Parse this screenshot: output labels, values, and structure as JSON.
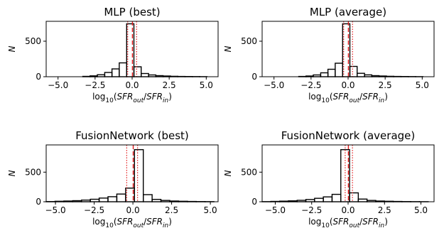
{
  "chart_data": [
    {
      "type": "histogram",
      "title": "MLP (best)",
      "ylabel": "N",
      "xlabel": {
        "prefix": "log",
        "sub": "10",
        "open": "(",
        "num": "SFR",
        "num_sub": "out",
        "slash": "/",
        "den": "SFR",
        "den_sub": "in",
        "close": ")"
      },
      "xlim": [
        -5.8,
        5.8
      ],
      "ylim": [
        0,
        780
      ],
      "xticks": [
        -5.0,
        -2.5,
        0.0,
        2.5,
        5.0
      ],
      "xtick_labels": [
        "−5.0",
        "−2.5",
        "0.0",
        "2.5",
        "5.0"
      ],
      "yticks": [
        0,
        500
      ],
      "ytick_labels": [
        "0",
        "500"
      ],
      "bin_edges": [
        -5.8,
        -5.31,
        -4.81,
        -4.32,
        -3.83,
        -3.33,
        -2.84,
        -2.35,
        -1.85,
        -1.36,
        -0.87,
        -0.37,
        0.12,
        0.61,
        1.11,
        1.6,
        2.09,
        2.59,
        3.08,
        3.57,
        4.07,
        4.56,
        5.05,
        5.55,
        5.8
      ],
      "counts": [
        0,
        0,
        0,
        0,
        0,
        5,
        12,
        28,
        60,
        110,
        195,
        745,
        140,
        45,
        25,
        15,
        10,
        6,
        4,
        3,
        2,
        1,
        0,
        0
      ],
      "vlines": [
        {
          "x": 0.02,
          "style": "dashed"
        },
        {
          "x": -0.3,
          "style": "dotted"
        },
        {
          "x": 0.3,
          "style": "dotted"
        }
      ]
    },
    {
      "type": "histogram",
      "title": "MLP (average)",
      "ylabel": "N",
      "xlabel": {
        "prefix": "log",
        "sub": "10",
        "open": "(",
        "num": "SFR",
        "num_sub": "out",
        "slash": "/",
        "den": "SFR",
        "den_sub": "in",
        "close": ")"
      },
      "xlim": [
        -5.8,
        5.8
      ],
      "ylim": [
        0,
        780
      ],
      "xticks": [
        -5.0,
        -2.5,
        0.0,
        2.5,
        5.0
      ],
      "xtick_labels": [
        "−5.0",
        "−2.5",
        "0.0",
        "2.5",
        "5.0"
      ],
      "yticks": [
        0,
        500
      ],
      "ytick_labels": [
        "0",
        "500"
      ],
      "bin_edges": [
        -5.8,
        -5.31,
        -4.81,
        -4.32,
        -3.83,
        -3.33,
        -2.84,
        -2.35,
        -1.85,
        -1.36,
        -0.87,
        -0.37,
        0.12,
        0.61,
        1.11,
        1.6,
        2.09,
        2.59,
        3.08,
        3.57,
        4.07,
        4.56,
        5.05,
        5.55,
        5.8
      ],
      "counts": [
        0,
        0,
        0,
        0,
        0,
        4,
        10,
        25,
        55,
        105,
        190,
        745,
        145,
        48,
        26,
        15,
        10,
        6,
        4,
        3,
        2,
        1,
        0,
        0
      ],
      "vlines": [
        {
          "x": 0.02,
          "style": "dashed"
        },
        {
          "x": -0.3,
          "style": "dotted"
        },
        {
          "x": 0.3,
          "style": "dotted"
        }
      ]
    },
    {
      "type": "histogram",
      "title": "FusionNetwork (best)",
      "ylabel": "N",
      "xlabel": {
        "prefix": "log",
        "sub": "10",
        "open": "(",
        "num": "SFR",
        "num_sub": "out",
        "slash": "/",
        "den": "SFR",
        "den_sub": "in",
        "close": ")"
      },
      "xlim": [
        -5.6,
        5.5
      ],
      "ylim": [
        0,
        960
      ],
      "xticks": [
        -5.0,
        -2.5,
        0.0,
        2.5,
        5.0
      ],
      "xtick_labels": [
        "−5.0",
        "−2.5",
        "0.0",
        "2.5",
        "5.0"
      ],
      "yticks": [
        0,
        500
      ],
      "ytick_labels": [
        "0",
        "500"
      ],
      "bin_edges": [
        -5.6,
        -5.03,
        -4.46,
        -3.89,
        -3.32,
        -2.75,
        -2.18,
        -1.61,
        -1.04,
        -0.47,
        0.1,
        0.67,
        1.24,
        1.81,
        2.38,
        2.95,
        3.52,
        4.09,
        4.66,
        5.23,
        5.5
      ],
      "counts": [
        3,
        8,
        12,
        18,
        28,
        42,
        62,
        85,
        130,
        230,
        880,
        120,
        40,
        22,
        12,
        8,
        5,
        3,
        2,
        0
      ],
      "vlines": [
        {
          "x": 0.02,
          "style": "dashed"
        },
        {
          "x": -0.4,
          "style": "dotted"
        },
        {
          "x": 0.3,
          "style": "dotted"
        }
      ]
    },
    {
      "type": "histogram",
      "title": "FusionNetwork (average)",
      "ylabel": "N",
      "xlabel": {
        "prefix": "log",
        "sub": "10",
        "open": "(",
        "num": "SFR",
        "num_sub": "out",
        "slash": "/",
        "den": "SFR",
        "den_sub": "in",
        "close": ")"
      },
      "xlim": [
        -5.9,
        5.9
      ],
      "ylim": [
        0,
        960
      ],
      "xticks": [
        -5.0,
        -2.5,
        0.0,
        2.5,
        5.0
      ],
      "xtick_labels": [
        "−5.0",
        "−2.5",
        "0.0",
        "2.5",
        "5.0"
      ],
      "yticks": [
        0,
        500
      ],
      "ytick_labels": [
        "0",
        "500"
      ],
      "bin_edges": [
        -5.9,
        -5.3,
        -4.7,
        -4.1,
        -3.5,
        -2.9,
        -2.3,
        -1.7,
        -1.1,
        -0.5,
        0.1,
        0.7,
        1.3,
        1.9,
        2.5,
        3.1,
        3.7,
        4.3,
        4.9,
        5.5,
        5.9
      ],
      "counts": [
        2,
        6,
        10,
        15,
        24,
        38,
        58,
        82,
        125,
        880,
        150,
        45,
        22,
        12,
        8,
        5,
        3,
        2,
        1,
        0
      ],
      "vlines": [
        {
          "x": 0.02,
          "style": "dashed"
        },
        {
          "x": -0.2,
          "style": "dotted"
        },
        {
          "x": 0.3,
          "style": "dotted"
        }
      ]
    }
  ],
  "colors": {
    "histogram": "#000000",
    "median_line": "#e41a1c",
    "quantile_lines": "#e41a1c",
    "axes": "#000000"
  }
}
